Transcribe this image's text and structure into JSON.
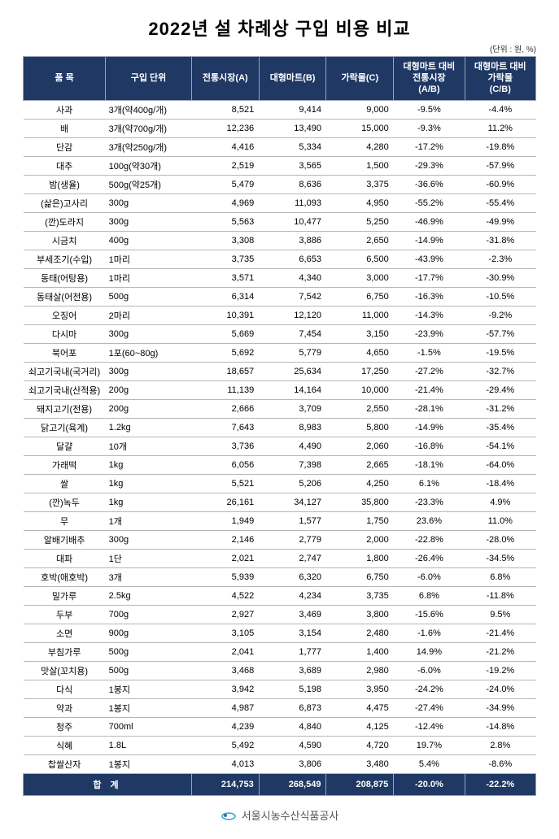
{
  "title": "2022년 설 차례상 구입 비용 비교",
  "unit_label": "(단위 : 원, %)",
  "columns": [
    "품 목",
    "구입 단위",
    "전통시장(A)",
    "대형마트(B)",
    "가락몰(C)",
    "대형마트 대비\n전통시장\n(A/B)",
    "대형마트 대비\n가락몰\n(C/B)"
  ],
  "col_widths": [
    "88px",
    "92px",
    "72px",
    "72px",
    "72px",
    "76px",
    "76px"
  ],
  "header_bg": "#1f3864",
  "header_fg": "#ffffff",
  "row_border": "#b7b7b7",
  "rows": [
    [
      "사과",
      "3개(약400g/개)",
      "8,521",
      "9,414",
      "9,000",
      "-9.5%",
      "-4.4%"
    ],
    [
      "배",
      "3개(약700g/개)",
      "12,236",
      "13,490",
      "15,000",
      "-9.3%",
      "11.2%"
    ],
    [
      "단감",
      "3개(약250g/개)",
      "4,416",
      "5,334",
      "4,280",
      "-17.2%",
      "-19.8%"
    ],
    [
      "대추",
      "100g(약30개)",
      "2,519",
      "3,565",
      "1,500",
      "-29.3%",
      "-57.9%"
    ],
    [
      "밤(생율)",
      "500g(약25개)",
      "5,479",
      "8,636",
      "3,375",
      "-36.6%",
      "-60.9%"
    ],
    [
      "(삶은)고사리",
      "300g",
      "4,969",
      "11,093",
      "4,950",
      "-55.2%",
      "-55.4%"
    ],
    [
      "(깐)도라지",
      "300g",
      "5,563",
      "10,477",
      "5,250",
      "-46.9%",
      "-49.9%"
    ],
    [
      "시금치",
      "400g",
      "3,308",
      "3,886",
      "2,650",
      "-14.9%",
      "-31.8%"
    ],
    [
      "부세조기(수입)",
      "1마리",
      "3,735",
      "6,653",
      "6,500",
      "-43.9%",
      "-2.3%"
    ],
    [
      "동태(어탕용)",
      "1마리",
      "3,571",
      "4,340",
      "3,000",
      "-17.7%",
      "-30.9%"
    ],
    [
      "동태살(어전용)",
      "500g",
      "6,314",
      "7,542",
      "6,750",
      "-16.3%",
      "-10.5%"
    ],
    [
      "오징어",
      "2마리",
      "10,391",
      "12,120",
      "11,000",
      "-14.3%",
      "-9.2%"
    ],
    [
      "다시마",
      "300g",
      "5,669",
      "7,454",
      "3,150",
      "-23.9%",
      "-57.7%"
    ],
    [
      "북어포",
      "1포(60~80g)",
      "5,692",
      "5,779",
      "4,650",
      "-1.5%",
      "-19.5%"
    ],
    [
      "쇠고기국내(국거리)",
      "300g",
      "18,657",
      "25,634",
      "17,250",
      "-27.2%",
      "-32.7%"
    ],
    [
      "쇠고기국내(산적용)",
      "200g",
      "11,139",
      "14,164",
      "10,000",
      "-21.4%",
      "-29.4%"
    ],
    [
      "돼지고기(전용)",
      "200g",
      "2,666",
      "3,709",
      "2,550",
      "-28.1%",
      "-31.2%"
    ],
    [
      "닭고기(육계)",
      "1.2kg",
      "7,643",
      "8,983",
      "5,800",
      "-14.9%",
      "-35.4%"
    ],
    [
      "달걀",
      "10개",
      "3,736",
      "4,490",
      "2,060",
      "-16.8%",
      "-54.1%"
    ],
    [
      "가래떡",
      "1kg",
      "6,056",
      "7,398",
      "2,665",
      "-18.1%",
      "-64.0%"
    ],
    [
      "쌀",
      "1kg",
      "5,521",
      "5,206",
      "4,250",
      "6.1%",
      "-18.4%"
    ],
    [
      "(깐)녹두",
      "1kg",
      "26,161",
      "34,127",
      "35,800",
      "-23.3%",
      "4.9%"
    ],
    [
      "무",
      "1개",
      "1,949",
      "1,577",
      "1,750",
      "23.6%",
      "11.0%"
    ],
    [
      "알배기배추",
      "300g",
      "2,146",
      "2,779",
      "2,000",
      "-22.8%",
      "-28.0%"
    ],
    [
      "대파",
      "1단",
      "2,021",
      "2,747",
      "1,800",
      "-26.4%",
      "-34.5%"
    ],
    [
      "호박(애호박)",
      "3개",
      "5,939",
      "6,320",
      "6,750",
      "-6.0%",
      "6.8%"
    ],
    [
      "밀가루",
      "2.5kg",
      "4,522",
      "4,234",
      "3,735",
      "6.8%",
      "-11.8%"
    ],
    [
      "두부",
      "700g",
      "2,927",
      "3,469",
      "3,800",
      "-15.6%",
      "9.5%"
    ],
    [
      "소면",
      "900g",
      "3,105",
      "3,154",
      "2,480",
      "-1.6%",
      "-21.4%"
    ],
    [
      "부침가루",
      "500g",
      "2,041",
      "1,777",
      "1,400",
      "14.9%",
      "-21.2%"
    ],
    [
      "맛살(꼬치용)",
      "500g",
      "3,468",
      "3,689",
      "2,980",
      "-6.0%",
      "-19.2%"
    ],
    [
      "다식",
      "1봉지",
      "3,942",
      "5,198",
      "3,950",
      "-24.2%",
      "-24.0%"
    ],
    [
      "약과",
      "1봉지",
      "4,987",
      "6,873",
      "4,475",
      "-27.4%",
      "-34.9%"
    ],
    [
      "청주",
      "700ml",
      "4,239",
      "4,840",
      "4,125",
      "-12.4%",
      "-14.8%"
    ],
    [
      "식혜",
      "1.8L",
      "5,492",
      "4,590",
      "4,720",
      "19.7%",
      "2.8%"
    ],
    [
      "찹쌀산자",
      "1봉지",
      "4,013",
      "3,806",
      "3,480",
      "5.4%",
      "-8.6%"
    ]
  ],
  "totals": {
    "label": "합 계",
    "a": "214,753",
    "b": "268,549",
    "c": "208,875",
    "ab": "-20.0%",
    "cb": "-22.2%"
  },
  "footer_org": "서울시농수산식품공사"
}
